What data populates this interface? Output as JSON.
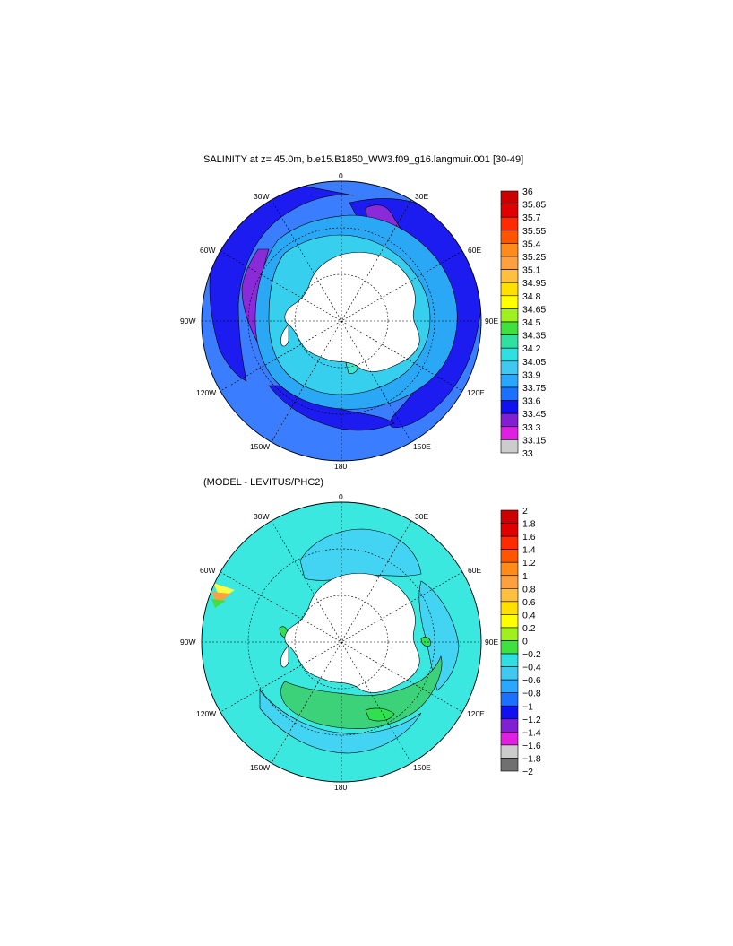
{
  "colors": {
    "land": "#ffffff",
    "coast": "#000000"
  },
  "panel1": {
    "title": "SALINITY at z=  45.0m, b.e15.B1850_WW3.f09_g16.langmuir.001 [30-49]",
    "lon_labels": {
      "n": "0",
      "nw": "30W",
      "ne": "30E",
      "w60": "60W",
      "e60": "60E",
      "w90": "90W",
      "e90": "90E",
      "w120": "120W",
      "e120": "120E",
      "w150": "150W",
      "e150": "150E",
      "s": "180"
    },
    "colorbar": {
      "labels": [
        "36",
        "35.85",
        "35.7",
        "35.55",
        "35.4",
        "35.25",
        "35.1",
        "34.95",
        "34.8",
        "34.65",
        "34.5",
        "34.35",
        "34.2",
        "34.05",
        "33.9",
        "33.75",
        "33.6",
        "33.45",
        "33.3",
        "33.15",
        "33"
      ],
      "colors": [
        "#cc0000",
        "#e00000",
        "#ff2a00",
        "#ff5500",
        "#ff8c1a",
        "#ffa040",
        "#ffc040",
        "#ffe000",
        "#ffff00",
        "#a0f020",
        "#40e040",
        "#30e0a0",
        "#30e0e0",
        "#40c8f0",
        "#2aa8ff",
        "#1a70ff",
        "#1010f0",
        "#8020d0",
        "#e020e0",
        "#cccccc",
        "#707070"
      ]
    },
    "fields": {
      "background": "#3a7eff",
      "outer_band": "#1c1cf0",
      "purple": "#8a2ad8",
      "inner": "#2aa8f5",
      "cyan": "#36d0ee",
      "mint": "#40e8d0"
    }
  },
  "panel2": {
    "title": "(MODEL - LEVITUS/PHC2)",
    "lon_labels": {
      "n": "0",
      "nw": "30W",
      "ne": "30E",
      "w60": "60W",
      "e60": "60E",
      "w90": "90W",
      "e90": "90E",
      "w120": "120W",
      "e120": "120E",
      "w150": "150W",
      "e150": "150E",
      "s": "180"
    },
    "colorbar": {
      "labels": [
        "2",
        "1.8",
        "1.6",
        "1.4",
        "1.2",
        "1",
        "0.8",
        "0.6",
        "0.4",
        "0.2",
        "0",
        "−0.2",
        "−0.4",
        "−0.6",
        "−0.8",
        "−1",
        "−1.2",
        "−1.4",
        "−1.6",
        "−1.8",
        "−2"
      ],
      "colors": [
        "#cc0000",
        "#e00000",
        "#ff2a00",
        "#ff5500",
        "#ff8c1a",
        "#ffa040",
        "#ffc040",
        "#ffe000",
        "#ffff00",
        "#a0f020",
        "#40e040",
        "#30e0e0",
        "#40c8f0",
        "#2aa8ff",
        "#1a70ff",
        "#1010f0",
        "#8020d0",
        "#e020e0",
        "#cccccc",
        "#707070"
      ]
    },
    "fields": {
      "background": "#3ae8e0",
      "light": "#42d4f2",
      "green": "#3cd27a",
      "bright_green": "#30e050"
    }
  }
}
